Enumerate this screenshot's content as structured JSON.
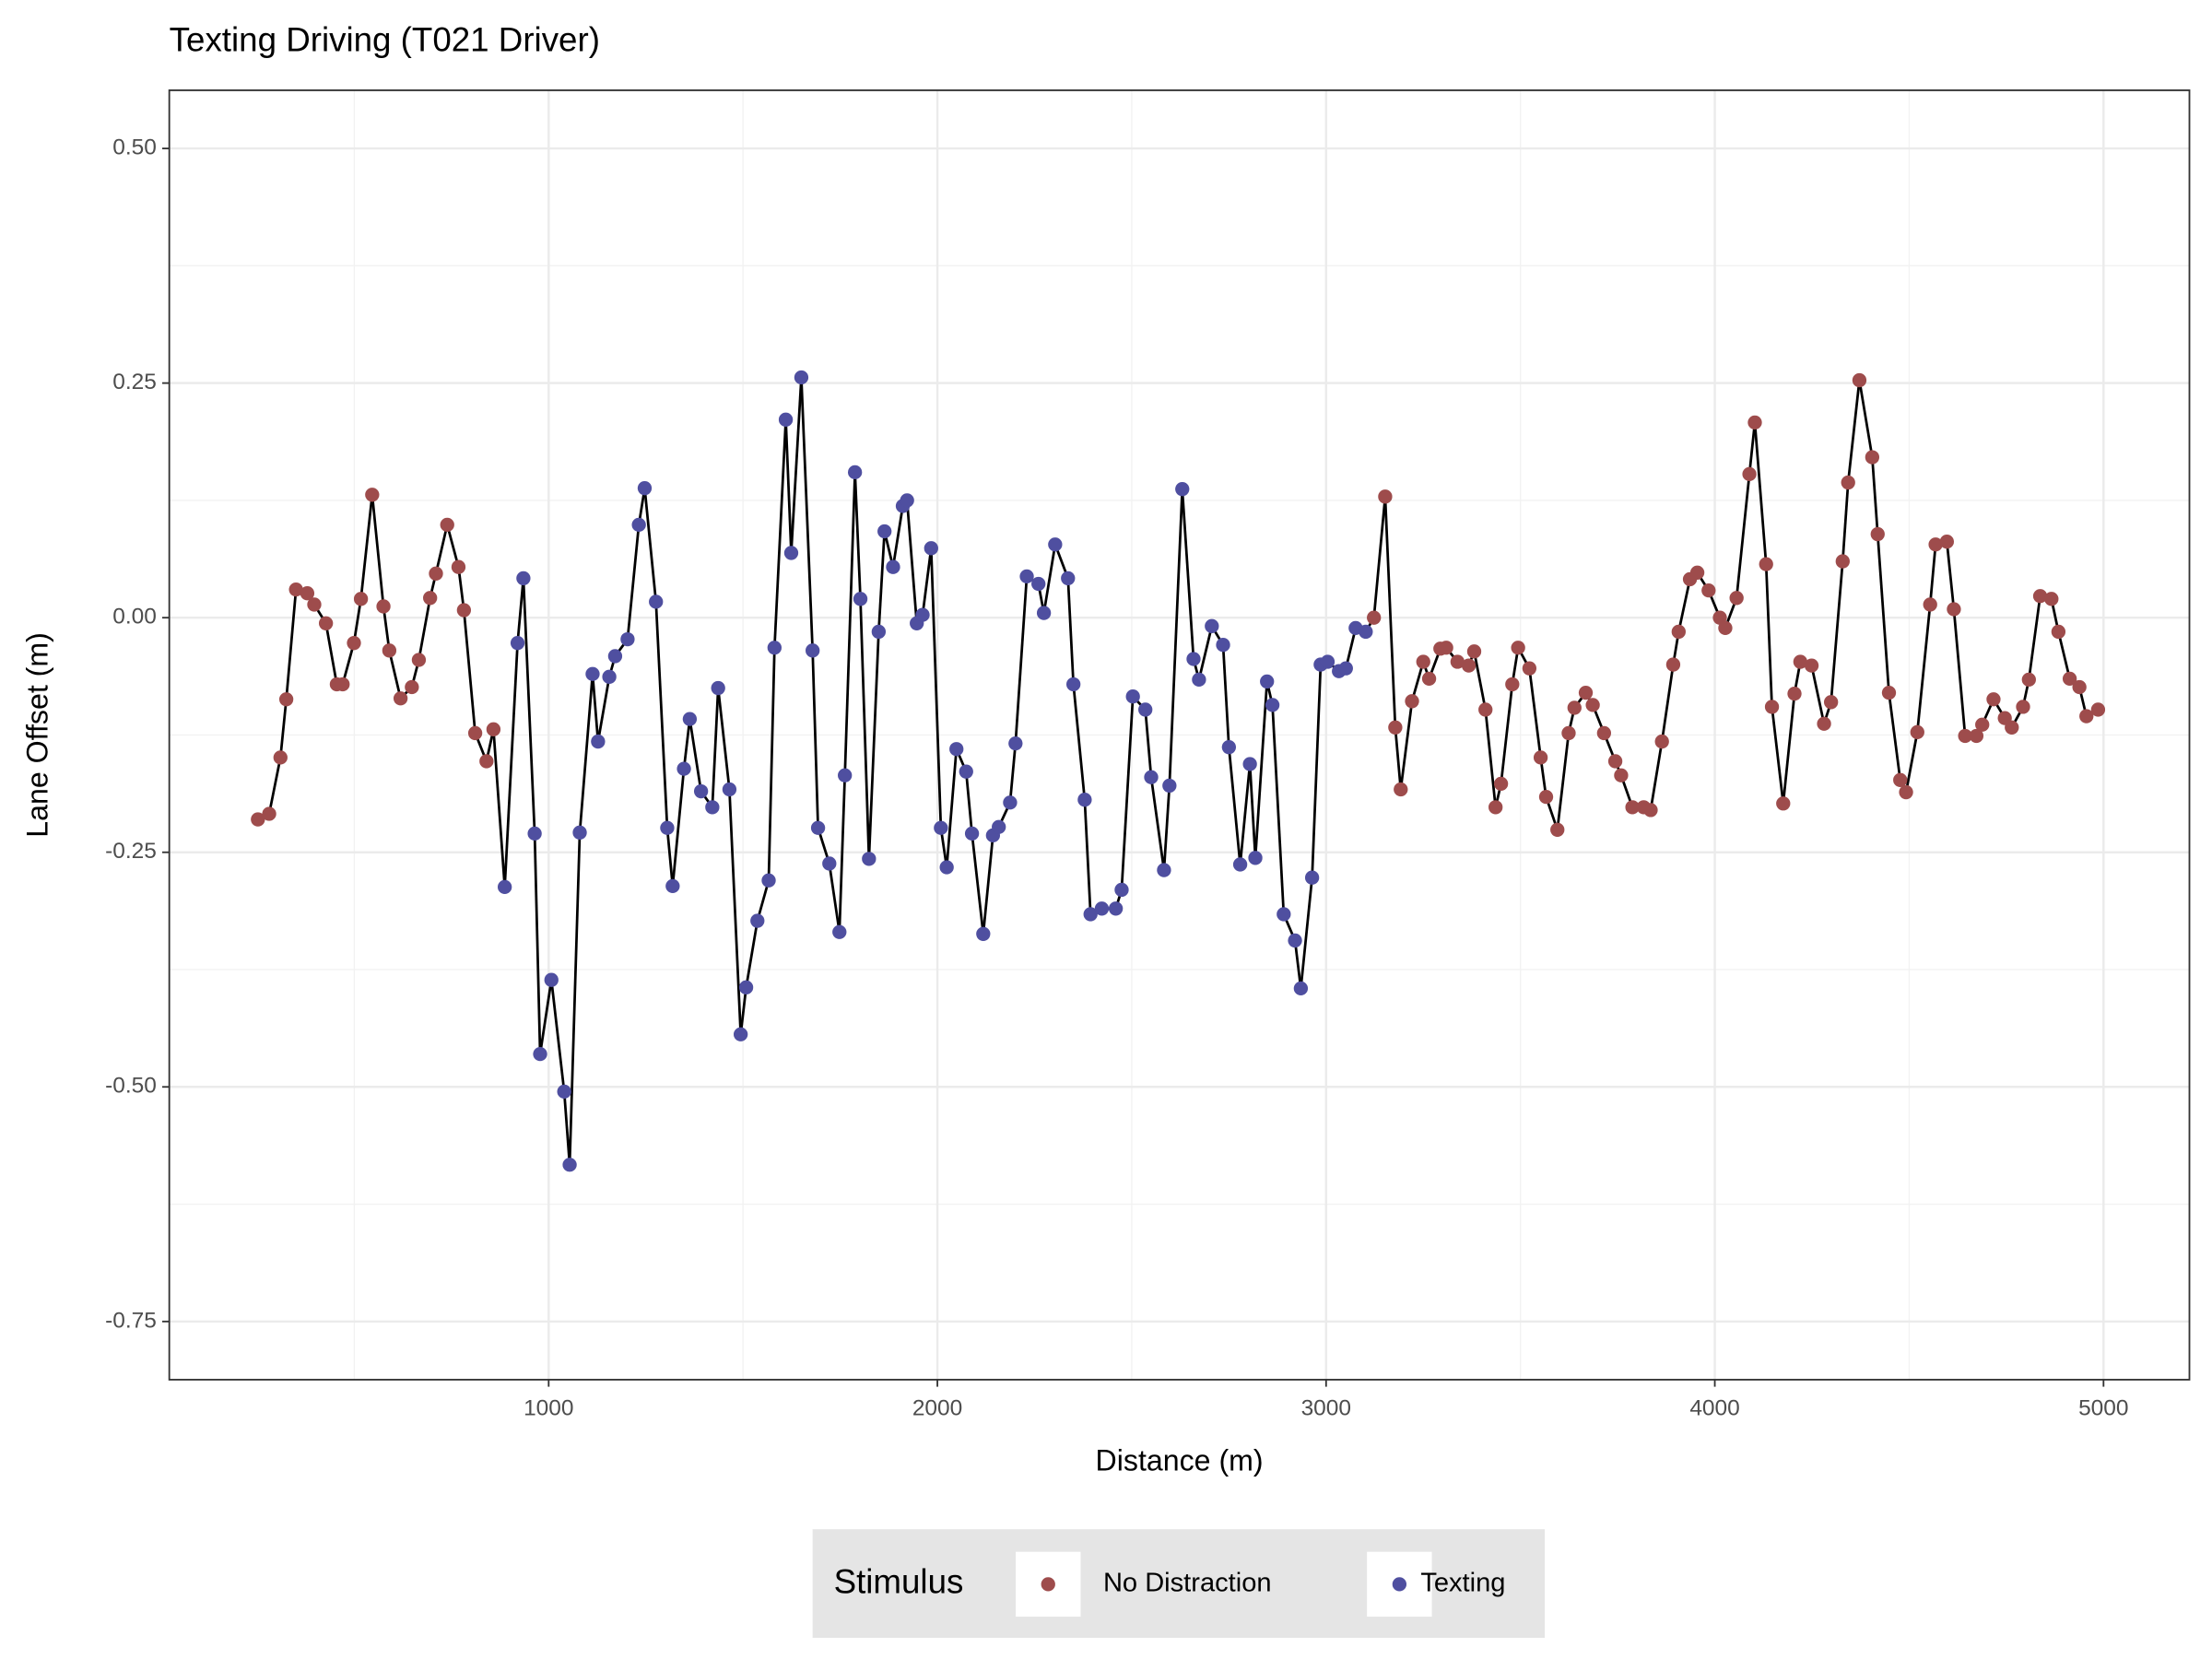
{
  "chart_data": {
    "type": "scatter-line",
    "title": "Texting Driving (T021 Driver)",
    "x_label": "Distance (m)",
    "y_label": "Lane Offset (m)",
    "legend_title": "Stimulus",
    "legend_position": "bottom",
    "grid": true,
    "line_color": "#000000",
    "xlim": [
      24,
      5221
    ],
    "ylim": [
      -0.812,
      0.562
    ],
    "xticks": [
      1000,
      2000,
      3000,
      4000,
      5000
    ],
    "yticks": [
      {
        "value": 0.5,
        "label": "0.50"
      },
      0.25,
      {
        "value": 0,
        "label": "0.00"
      },
      -0.25,
      {
        "value": -0.5,
        "label": "-0.50"
      },
      -0.75
    ],
    "x_minor_ticks": [
      500,
      1500,
      2500,
      3500,
      4500
    ],
    "y_minor_ticks": [
      0.375,
      0.125,
      -0.125,
      -0.375,
      -0.625
    ],
    "series": [
      {
        "name": "No Distraction",
        "color": "#9e4c4c",
        "x": [
          252,
          281,
          310,
          325,
          350,
          379,
          397,
          427,
          455,
          470,
          499,
          517,
          546,
          575,
          590,
          619,
          648,
          666,
          695,
          710,
          739,
          768,
          782,
          811,
          840,
          858,
          3123,
          3152,
          3178,
          3192,
          3221,
          3250,
          3265,
          3294,
          3309,
          3338,
          3367,
          3381,
          3410,
          3436,
          3450,
          3479,
          3494,
          3523,
          3552,
          3566,
          3595,
          3624,
          3639,
          3668,
          3686,
          3715,
          3744,
          3759,
          3788,
          3817,
          3835,
          3864,
          3893,
          3907,
          3936,
          3955,
          3984,
          4013,
          4027,
          4056,
          4089,
          4103,
          4132,
          4147,
          4176,
          4205,
          4220,
          4249,
          4281,
          4299,
          4329,
          4343,
          4372,
          4405,
          4419,
          4448,
          4477,
          4492,
          4521,
          4554,
          4568,
          4597,
          4615,
          4644,
          4673,
          4688,
          4717,
          4746,
          4764,
          4793,
          4808,
          4837,
          4866,
          4884,
          4913,
          4938,
          4956,
          4986
        ],
        "values": [
          -0.215,
          -0.209,
          -0.149,
          -0.087,
          0.03,
          0.026,
          0.014,
          -0.006,
          -0.071,
          -0.071,
          -0.027,
          0.02,
          0.131,
          0.012,
          -0.035,
          -0.086,
          -0.074,
          -0.045,
          0.021,
          0.047,
          0.099,
          0.054,
          0.008,
          -0.123,
          -0.153,
          -0.119,
          0.0,
          0.129,
          -0.117,
          -0.183,
          -0.089,
          -0.047,
          -0.065,
          -0.033,
          -0.032,
          -0.047,
          -0.051,
          -0.036,
          -0.098,
          -0.202,
          -0.177,
          -0.071,
          -0.032,
          -0.054,
          -0.149,
          -0.191,
          -0.226,
          -0.123,
          -0.096,
          -0.08,
          -0.093,
          -0.123,
          -0.153,
          -0.168,
          -0.202,
          -0.202,
          -0.205,
          -0.132,
          -0.05,
          -0.015,
          0.041,
          0.048,
          0.029,
          0.0,
          -0.011,
          0.021,
          0.153,
          0.208,
          0.057,
          -0.095,
          -0.198,
          -0.081,
          -0.047,
          -0.051,
          -0.113,
          -0.09,
          0.06,
          0.144,
          0.253,
          0.171,
          0.089,
          -0.08,
          -0.173,
          -0.186,
          -0.122,
          0.014,
          0.078,
          0.081,
          0.009,
          -0.126,
          -0.126,
          -0.114,
          -0.087,
          -0.107,
          -0.117,
          -0.095,
          -0.066,
          0.023,
          0.02,
          -0.015,
          -0.065,
          -0.074,
          -0.105,
          -0.098
        ]
      },
      {
        "name": "Texting",
        "color": "#4f4fa0",
        "x": [
          887,
          920,
          935,
          964,
          978,
          1007,
          1040,
          1054,
          1080,
          1113,
          1127,
          1156,
          1171,
          1203,
          1232,
          1247,
          1276,
          1305,
          1319,
          1348,
          1363,
          1392,
          1421,
          1436,
          1465,
          1494,
          1508,
          1537,
          1566,
          1581,
          1610,
          1624,
          1650,
          1679,
          1693,
          1722,
          1748,
          1762,
          1788,
          1802,
          1824,
          1849,
          1864,
          1886,
          1911,
          1922,
          1947,
          1962,
          1984,
          2009,
          2024,
          2049,
          2074,
          2089,
          2118,
          2143,
          2158,
          2187,
          2201,
          2230,
          2260,
          2274,
          2303,
          2336,
          2350,
          2379,
          2394,
          2423,
          2459,
          2474,
          2503,
          2535,
          2550,
          2583,
          2597,
          2630,
          2659,
          2673,
          2706,
          2735,
          2750,
          2779,
          2804,
          2818,
          2848,
          2862,
          2891,
          2920,
          2935,
          2964,
          2986,
          3004,
          3033,
          3051,
          3076,
          3102
        ],
        "values": [
          -0.287,
          -0.027,
          0.042,
          -0.23,
          -0.465,
          -0.386,
          -0.505,
          -0.583,
          -0.229,
          -0.06,
          -0.132,
          -0.063,
          -0.041,
          -0.023,
          0.099,
          0.138,
          0.017,
          -0.224,
          -0.286,
          -0.161,
          -0.108,
          -0.185,
          -0.202,
          -0.075,
          -0.183,
          -0.444,
          -0.394,
          -0.323,
          -0.28,
          -0.032,
          0.211,
          0.069,
          0.256,
          -0.035,
          -0.224,
          -0.262,
          -0.335,
          -0.168,
          0.155,
          0.02,
          -0.257,
          -0.015,
          0.092,
          0.054,
          0.119,
          0.125,
          -0.006,
          0.003,
          0.074,
          -0.224,
          -0.266,
          -0.14,
          -0.164,
          -0.23,
          -0.337,
          -0.232,
          -0.223,
          -0.197,
          -0.134,
          0.044,
          0.036,
          0.005,
          0.078,
          0.042,
          -0.071,
          -0.194,
          -0.316,
          -0.31,
          -0.31,
          -0.29,
          -0.084,
          -0.098,
          -0.17,
          -0.269,
          -0.179,
          0.137,
          -0.044,
          -0.066,
          -0.009,
          -0.029,
          -0.138,
          -0.263,
          -0.156,
          -0.256,
          -0.068,
          -0.093,
          -0.316,
          -0.344,
          -0.395,
          -0.277,
          -0.05,
          -0.047,
          -0.057,
          -0.054,
          -0.011,
          -0.015
        ]
      }
    ]
  }
}
